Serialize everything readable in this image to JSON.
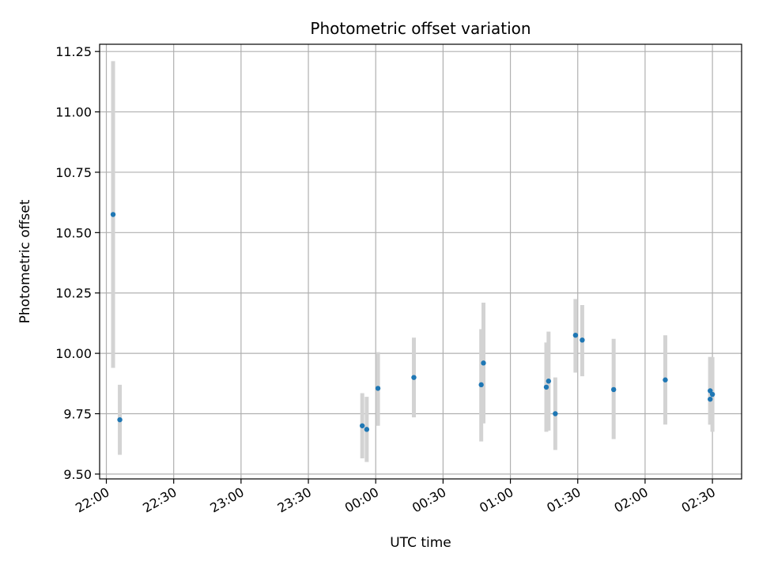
{
  "chart_data": {
    "type": "scatter",
    "title": "Photometric offset variation",
    "xlabel": "UTC time",
    "ylabel": "Photometric offset",
    "x_unit": "UTC time of day (hh:mm), axis spans across midnight",
    "xlim": [
      "21:57",
      "02:43"
    ],
    "ylim": [
      9.48,
      11.28
    ],
    "grid": true,
    "colors": {
      "points": "#1f77b4",
      "errorbars": "#d3d3d3",
      "grid": "#b0b0b0",
      "axes": "#000000"
    },
    "x_ticks": [
      "22:00",
      "22:30",
      "23:00",
      "23:30",
      "00:00",
      "00:30",
      "01:00",
      "01:30",
      "02:00",
      "02:30"
    ],
    "y_ticks": [
      "9.50",
      "9.75",
      "10.00",
      "10.25",
      "10.50",
      "10.75",
      "11.00",
      "11.25"
    ],
    "series": [
      {
        "points": [
          {
            "x": "22:03",
            "y": 10.575,
            "ylow": 9.94,
            "yhigh": 11.21
          },
          {
            "x": "22:06",
            "y": 9.725,
            "ylow": 9.58,
            "yhigh": 9.87
          },
          {
            "x": "23:54",
            "y": 9.7,
            "ylow": 9.565,
            "yhigh": 9.835
          },
          {
            "x": "23:56",
            "y": 9.685,
            "ylow": 9.55,
            "yhigh": 9.82
          },
          {
            "x": "00:01",
            "y": 9.855,
            "ylow": 9.7,
            "yhigh": 10.005
          },
          {
            "x": "00:17",
            "y": 9.9,
            "ylow": 9.735,
            "yhigh": 10.065
          },
          {
            "x": "00:47",
            "y": 9.87,
            "ylow": 9.635,
            "yhigh": 10.1
          },
          {
            "x": "00:48",
            "y": 9.96,
            "ylow": 9.71,
            "yhigh": 10.21
          },
          {
            "x": "01:16",
            "y": 9.86,
            "ylow": 9.675,
            "yhigh": 10.045
          },
          {
            "x": "01:17",
            "y": 9.885,
            "ylow": 9.68,
            "yhigh": 10.09
          },
          {
            "x": "01:20",
            "y": 9.75,
            "ylow": 9.6,
            "yhigh": 9.9
          },
          {
            "x": "01:29",
            "y": 10.075,
            "ylow": 9.92,
            "yhigh": 10.225
          },
          {
            "x": "01:32",
            "y": 10.055,
            "ylow": 9.905,
            "yhigh": 10.2
          },
          {
            "x": "01:46",
            "y": 9.85,
            "ylow": 9.645,
            "yhigh": 10.06
          },
          {
            "x": "02:09",
            "y": 9.89,
            "ylow": 9.705,
            "yhigh": 10.075
          },
          {
            "x": "02:29",
            "y": 9.81,
            "ylow": 9.705,
            "yhigh": 9.985
          },
          {
            "x": "02:29",
            "y": 9.845,
            "ylow": 9.705,
            "yhigh": 9.985
          },
          {
            "x": "02:30",
            "y": 9.83,
            "ylow": 9.675,
            "yhigh": 9.985
          }
        ]
      }
    ]
  }
}
